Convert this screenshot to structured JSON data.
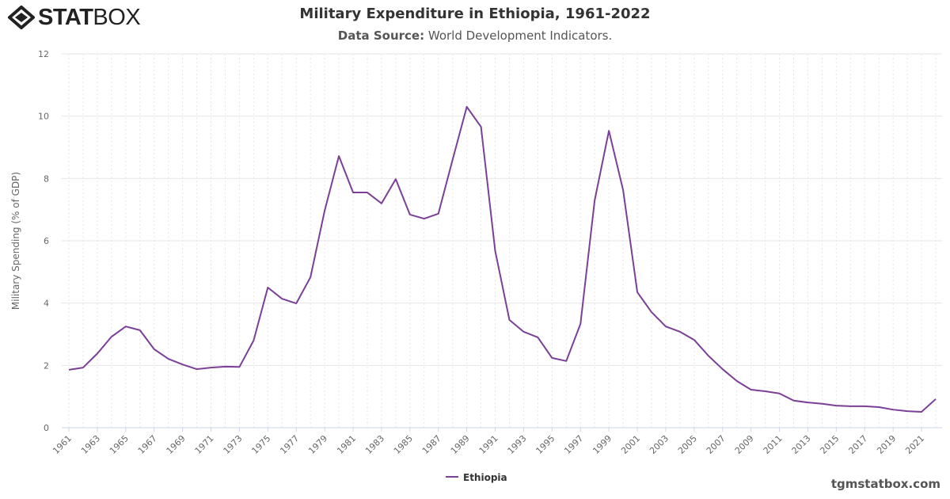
{
  "logo": {
    "text_bold": "STAT",
    "text_light": "BOX"
  },
  "header": {
    "title": "Military Expenditure in Ethiopia, 1961-2022",
    "subtitle_label": "Data Source:",
    "subtitle_value": "World Development Indicators."
  },
  "credit": "tgmstatbox.com",
  "chart_data": {
    "type": "line",
    "title": "Military Expenditure in Ethiopia, 1961-2022",
    "ylabel": "Military Spending (% of GDP)",
    "xlabel": "",
    "ylim": [
      0,
      12
    ],
    "yticks": [
      0,
      2,
      4,
      6,
      8,
      10,
      12
    ],
    "xlim": [
      1961,
      2022
    ],
    "xtick_labels": [
      "1961",
      "1963",
      "1965",
      "1967",
      "1969",
      "1971",
      "1973",
      "1975",
      "1977",
      "1979",
      "1981",
      "1983",
      "1985",
      "1987",
      "1989",
      "1991",
      "1993",
      "1995",
      "1997",
      "1999",
      "2001",
      "2003",
      "2005",
      "2007",
      "2009",
      "2011",
      "2013",
      "2015",
      "2017",
      "2019",
      "2021"
    ],
    "grid": true,
    "legend_position": "bottom-center",
    "series": [
      {
        "name": "Ethiopia",
        "color": "#7b3f98",
        "x": [
          1961,
          1962,
          1963,
          1964,
          1965,
          1966,
          1967,
          1968,
          1969,
          1970,
          1971,
          1972,
          1973,
          1974,
          1975,
          1976,
          1977,
          1978,
          1979,
          1980,
          1981,
          1982,
          1983,
          1984,
          1985,
          1986,
          1987,
          1988,
          1989,
          1990,
          1991,
          1992,
          1993,
          1994,
          1995,
          1996,
          1997,
          1998,
          1999,
          2000,
          2001,
          2002,
          2003,
          2004,
          2005,
          2006,
          2007,
          2008,
          2009,
          2010,
          2011,
          2012,
          2013,
          2014,
          2015,
          2016,
          2017,
          2018,
          2019,
          2020,
          2021,
          2022
        ],
        "values": [
          1.86,
          1.93,
          2.38,
          2.92,
          3.25,
          3.13,
          2.52,
          2.21,
          2.03,
          1.88,
          1.93,
          1.96,
          1.95,
          2.8,
          4.5,
          4.14,
          3.99,
          4.83,
          6.97,
          8.72,
          7.55,
          7.55,
          7.2,
          7.98,
          6.84,
          6.71,
          6.87,
          8.6,
          10.3,
          9.66,
          5.67,
          3.46,
          3.08,
          2.9,
          2.24,
          2.14,
          3.33,
          7.3,
          9.53,
          7.63,
          4.35,
          3.71,
          3.25,
          3.08,
          2.82,
          2.31,
          1.88,
          1.5,
          1.22,
          1.17,
          1.1,
          0.87,
          0.81,
          0.77,
          0.71,
          0.69,
          0.69,
          0.66,
          0.58,
          0.53,
          0.51,
          0.92
        ]
      }
    ]
  }
}
